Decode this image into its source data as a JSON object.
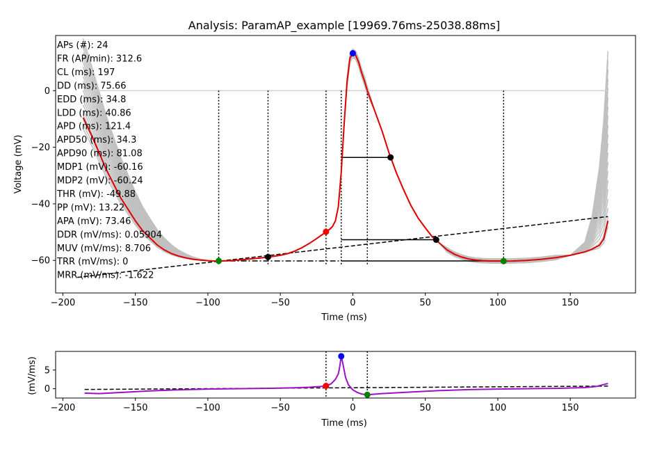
{
  "figure": {
    "title": "Analysis: ParamAP_example [19969.76ms-25038.88ms]"
  },
  "colors": {
    "mean_trace": "#e00000",
    "traces": "#c0c0c0",
    "derivative": "#9b11c4",
    "apex": "#0000ff",
    "threshold": "#ff0000",
    "mdp": "#008000",
    "marker_black": "#000000"
  },
  "stats": [
    "APs (#): 24",
    "FR (AP/min): 312.6",
    "CL (ms): 197",
    "DD (ms): 75.66",
    "EDD (ms): 34.8",
    "LDD (ms): 40.86",
    "APD (ms): 121.4",
    "APD50 (ms): 34.3",
    "APD90 (ms): 81.08",
    "MDP1 (mV): -60.16",
    "MDP2 (mV): -60.24",
    "THR (mV): -49.88",
    "PP (mV): 13.22",
    "APA (mV): 73.46",
    "DDR (mV/ms): 0.05904",
    "MUV (mV/ms): 8.706",
    "TRR (mV/ms): 0",
    "MRR (mV/ms): -1.622"
  ],
  "chart_data": [
    {
      "type": "line",
      "title": "Analysis: ParamAP_example [19969.76ms-25038.88ms]",
      "xlabel": "Time (ms)",
      "ylabel": "Voltage (mV)",
      "xlim": [
        -205,
        195
      ],
      "ylim": [
        -71.5,
        19.5
      ],
      "xticks": [
        -200,
        -150,
        -100,
        -50,
        0,
        50,
        100,
        150
      ],
      "xtick_labels": [
        "−200",
        "−150",
        "−100",
        "−50",
        "0",
        "50",
        "100",
        "150"
      ],
      "yticks": [
        0,
        -20,
        -40,
        -60
      ],
      "ytick_labels": [
        "0",
        "−20",
        "−40",
        "−60"
      ],
      "grid": false,
      "series": [
        {
          "role": "mean",
          "x": [
            -186,
            -180,
            -175,
            -170,
            -165,
            -160,
            -155,
            -150,
            -145,
            -140,
            -135,
            -130,
            -125,
            -120,
            -115,
            -110,
            -105,
            -100,
            -95,
            -92,
            -85,
            -75,
            -65,
            -58,
            -50,
            -45,
            -40,
            -35,
            -30,
            -25,
            -20,
            -18.5,
            -16,
            -14,
            -12,
            -10,
            -8,
            -6,
            -4,
            -2,
            0,
            2,
            4,
            6,
            8,
            10,
            15,
            20,
            25,
            30,
            35,
            40,
            45,
            50,
            55,
            57.5,
            60,
            65,
            70,
            75,
            80,
            85,
            90,
            95,
            100,
            104,
            110,
            120,
            130,
            140,
            150,
            160,
            165,
            170,
            173,
            176
          ],
          "y": [
            -9.5,
            -16,
            -22,
            -28,
            -33,
            -38,
            -42,
            -46,
            -49.5,
            -52,
            -54.5,
            -56.3,
            -57.6,
            -58.5,
            -59.1,
            -59.6,
            -59.9,
            -60.1,
            -60.2,
            -60.2,
            -60.1,
            -59.7,
            -59.2,
            -58.8,
            -58.2,
            -57.6,
            -56.7,
            -55.5,
            -54,
            -52.3,
            -50.5,
            -49.9,
            -49,
            -48,
            -46,
            -41,
            -29,
            -12,
            3,
            11.5,
            13.2,
            12.5,
            10,
            6.5,
            3.5,
            0,
            -7,
            -14,
            -22,
            -29,
            -35,
            -40.5,
            -45,
            -48.5,
            -51.8,
            -52.7,
            -54,
            -56.3,
            -57.8,
            -58.8,
            -59.5,
            -59.9,
            -60.1,
            -60.2,
            -60.2,
            -60.24,
            -60.2,
            -60,
            -59.6,
            -59,
            -58.2,
            -57,
            -56,
            -54.7,
            -52.5,
            -46
          ]
        }
      ],
      "markers": [
        {
          "x": -92.5,
          "y": -60.16,
          "kind": "mdp"
        },
        {
          "x": 104,
          "y": -60.24,
          "kind": "mdp"
        },
        {
          "x": -18.5,
          "y": -49.88,
          "kind": "threshold"
        },
        {
          "x": 0,
          "y": 13.22,
          "kind": "apex"
        },
        {
          "x": -58.5,
          "y": -58.8,
          "kind": "black"
        },
        {
          "x": 26,
          "y": -23.6,
          "kind": "black"
        },
        {
          "x": 57.5,
          "y": -52.7,
          "kind": "black"
        }
      ],
      "vlines": [
        -92.5,
        -58.5,
        -18.5,
        -8,
        10,
        104
      ],
      "zero_line": {
        "x1": -186,
        "x2": 176,
        "y": 0
      },
      "apd_lines": [
        {
          "x1": -8,
          "x2": 26,
          "y": -23.6
        },
        {
          "x1": -8,
          "x2": 57.5,
          "y": -52.7
        },
        {
          "x1": -8,
          "x2": 104,
          "y": -60.2
        }
      ],
      "dashdot_line": {
        "x1": -92.5,
        "x2": -8,
        "y": -60.2
      },
      "ddr_line": {
        "x1": -190,
        "x2": 176,
        "y1": -66,
        "y2": -44.5
      }
    },
    {
      "type": "line",
      "xlabel": "Time (ms)",
      "ylabel": "(mV/ms)",
      "xlim": [
        -205,
        195
      ],
      "ylim": [
        -2.5,
        10
      ],
      "xticks": [
        -200,
        -150,
        -100,
        -50,
        0,
        50,
        100,
        150
      ],
      "xtick_labels": [
        "−200",
        "−150",
        "−100",
        "−50",
        "0",
        "50",
        "100",
        "150"
      ],
      "yticks": [
        5,
        0
      ],
      "ytick_labels": [
        "5",
        "0"
      ],
      "grid": false,
      "series": [
        {
          "role": "derivative",
          "x": [
            -185,
            -175,
            -160,
            -140,
            -120,
            -100,
            -80,
            -60,
            -40,
            -30,
            -22,
            -18.5,
            -15,
            -12,
            -10,
            -9,
            -8,
            -7,
            -6,
            -5,
            -3,
            0,
            3,
            6,
            8,
            10,
            14,
            20,
            40,
            60,
            80,
            100,
            120,
            140,
            160,
            168,
            172,
            176
          ],
          "y": [
            -1.2,
            -1.3,
            -1.0,
            -0.6,
            -0.3,
            -0.1,
            0.0,
            0.1,
            0.25,
            0.4,
            0.6,
            0.75,
            1.3,
            2.5,
            4.0,
            6.0,
            8.706,
            7.0,
            5.0,
            3.0,
            1.0,
            -0.3,
            -1.0,
            -1.4,
            -1.55,
            -1.62,
            -1.5,
            -1.3,
            -0.9,
            -0.5,
            -0.25,
            -0.1,
            0.0,
            0.1,
            0.3,
            0.6,
            1.0,
            1.4
          ]
        }
      ],
      "markers": [
        {
          "x": -18.5,
          "y": 0.75,
          "kind": "threshold"
        },
        {
          "x": -8,
          "y": 8.706,
          "kind": "apex"
        },
        {
          "x": 10,
          "y": -1.622,
          "kind": "mdp"
        }
      ],
      "vlines": [
        -18.5,
        10
      ],
      "ddr_line": {
        "x1": -185,
        "x2": 176,
        "y1": -0.2,
        "y2": 0.7
      }
    }
  ]
}
